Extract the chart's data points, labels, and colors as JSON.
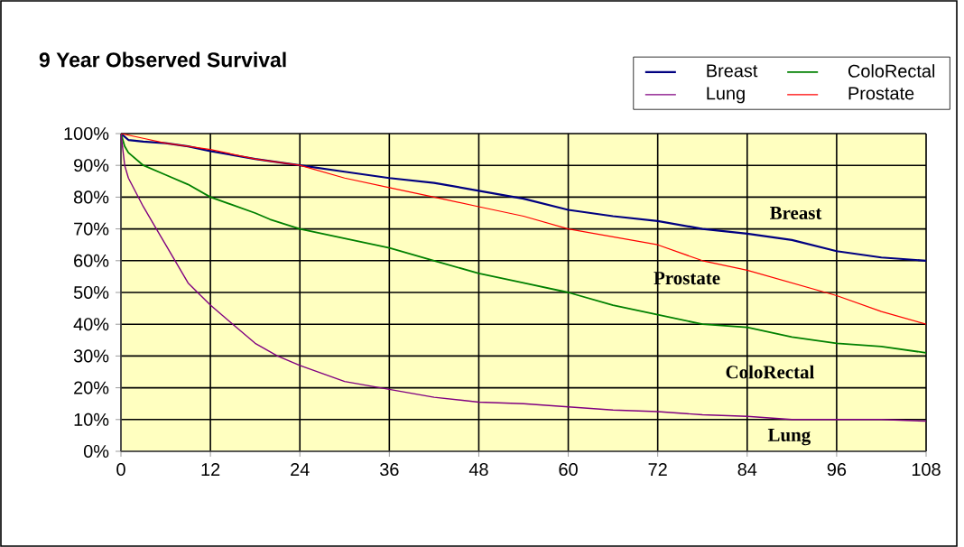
{
  "chart_data": {
    "type": "line",
    "title": "9 Year Observed Survival",
    "xlim": [
      0,
      108
    ],
    "xticks": [
      0,
      12,
      24,
      36,
      48,
      60,
      72,
      84,
      96,
      108
    ],
    "ylim": [
      0,
      100
    ],
    "yticks": [
      {
        "value": 0,
        "label": "0%"
      },
      {
        "value": 10,
        "label": "10%"
      },
      {
        "value": 20,
        "label": "20%"
      },
      {
        "value": 30,
        "label": "30%"
      },
      {
        "value": 40,
        "label": "40%"
      },
      {
        "value": 50,
        "label": "50%"
      },
      {
        "value": 60,
        "label": "60%"
      },
      {
        "value": 70,
        "label": "70%"
      },
      {
        "value": 80,
        "label": "80%"
      },
      {
        "value": 90,
        "label": "90%"
      },
      {
        "value": 100,
        "label": "100%"
      }
    ],
    "grid": true,
    "legend": "top right",
    "marker": "none",
    "line_style": "solid",
    "series": [
      {
        "name": "Breast",
        "color": "#000080",
        "x": [
          0,
          1,
          3,
          6,
          9,
          12,
          18,
          24,
          30,
          36,
          42,
          48,
          54,
          60,
          66,
          72,
          78,
          84,
          90,
          96,
          102,
          108
        ],
        "values": [
          100,
          98,
          97.5,
          97,
          96,
          94.5,
          92,
          90,
          88,
          86,
          84.5,
          82,
          79.5,
          76,
          74,
          72.5,
          70,
          68.5,
          66.5,
          63,
          61,
          60
        ]
      },
      {
        "name": "ColoRectal",
        "color": "#008000",
        "x": [
          0,
          0.5,
          1,
          3,
          6,
          9,
          12,
          18,
          20,
          24,
          30,
          36,
          42,
          48,
          54,
          60,
          66,
          72,
          78,
          84,
          90,
          96,
          102,
          108
        ],
        "values": [
          100,
          96,
          94,
          90,
          87,
          84,
          80,
          75,
          73,
          70,
          67,
          64,
          60,
          56,
          53,
          50,
          46,
          43,
          40,
          39,
          36,
          34,
          33,
          31
        ]
      },
      {
        "name": "Lung",
        "color": "#800080",
        "x": [
          0,
          0.5,
          1,
          3,
          6,
          9,
          12,
          15,
          18,
          21,
          24,
          30,
          36,
          42,
          48,
          54,
          60,
          66,
          72,
          78,
          84,
          90,
          96,
          102,
          108
        ],
        "values": [
          100,
          90,
          86,
          77,
          65,
          53,
          46,
          40,
          34,
          30,
          27,
          22,
          19.5,
          17,
          15.5,
          15,
          14,
          13,
          12.5,
          11.5,
          11,
          10,
          10,
          10,
          9.5
        ]
      },
      {
        "name": "Prostate",
        "color": "#ff0000",
        "x": [
          0,
          3,
          6,
          12,
          18,
          24,
          30,
          36,
          42,
          48,
          54,
          60,
          66,
          72,
          78,
          84,
          90,
          96,
          102,
          108
        ],
        "values": [
          100,
          98.5,
          97,
          95,
          92,
          90,
          86,
          83,
          80,
          77,
          74,
          70,
          67.5,
          65,
          60,
          57,
          53,
          49,
          44,
          40
        ]
      }
    ],
    "annotations": [
      "Breast",
      "Prostate",
      "ColoRectal",
      "Lung"
    ]
  }
}
